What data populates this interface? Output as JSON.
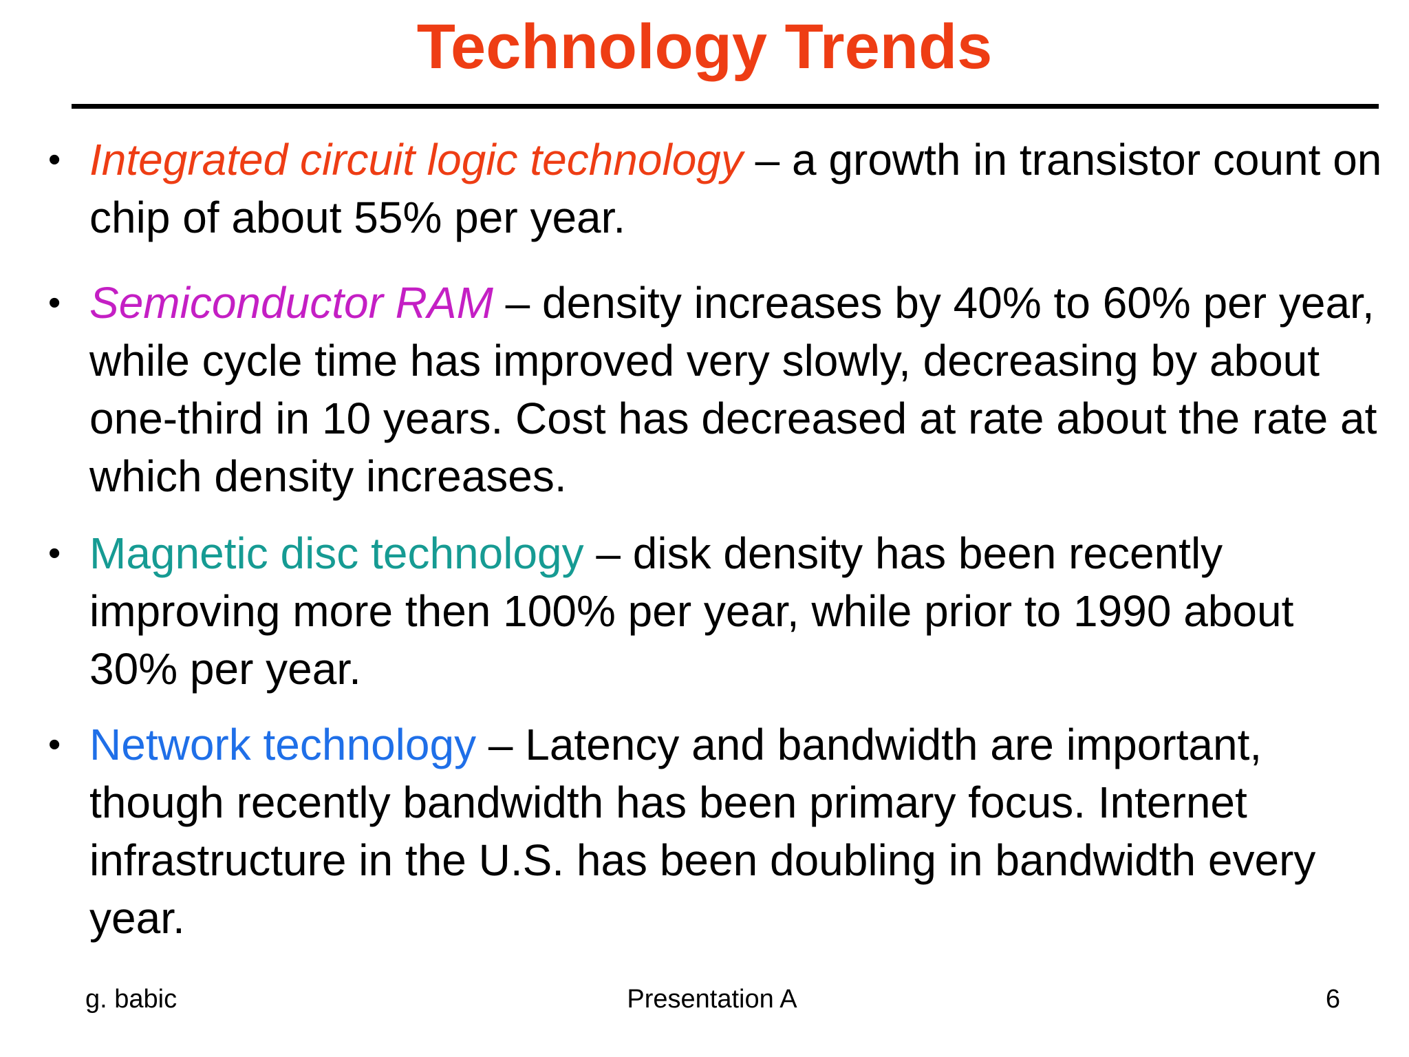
{
  "slide": {
    "title": "Technology Trends",
    "bullets": [
      {
        "lead": "Integrated circuit logic technology",
        "lead_color": "#ee3d14",
        "lead_italic": true,
        "rest": " – a growth in transistor count on chip of about 55% per year."
      },
      {
        "lead": "Semiconductor RAM",
        "lead_color": "#c41fc4",
        "lead_italic": true,
        "rest": " – density increases by 40% to 60% per year, while cycle time has improved very slowly, decreasing by about one-third in 10 years. Cost has decreased at rate about the rate at which density increases."
      },
      {
        "lead": "Magnetic disc technology",
        "lead_color": "#169b93",
        "lead_italic": false,
        "rest": " – disk density has been recently improving more then 100% per year, while prior to 1990 about 30% per year."
      },
      {
        "lead": "Network technology",
        "lead_color": "#1f6fe8",
        "lead_italic": false,
        "rest": " – Latency and bandwidth are important, though recently bandwidth has been primary focus. Internet infrastructure in the U.S. has been doubling in bandwidth every year."
      }
    ],
    "bullet_symbol": "•"
  },
  "footer": {
    "author": "g. babic",
    "center": "Presentation A",
    "page_number": "6"
  },
  "colors": {
    "title": "#ee3d14",
    "text": "#000000",
    "background": "#ffffff"
  }
}
